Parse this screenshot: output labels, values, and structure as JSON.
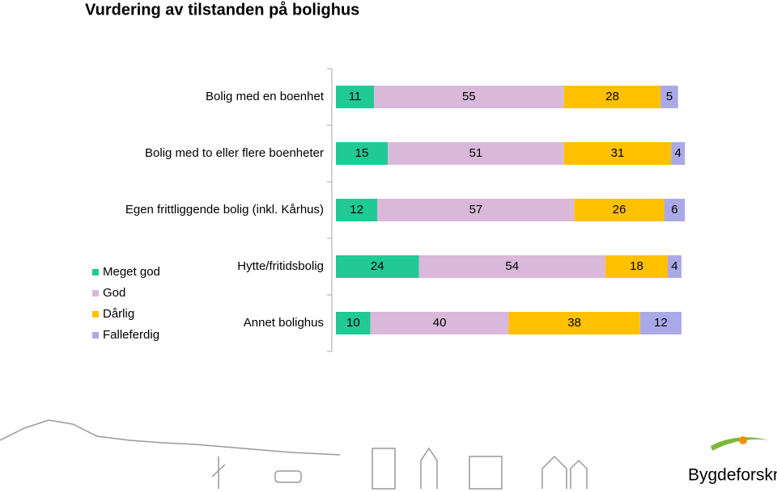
{
  "chart_data": {
    "type": "stacked-bar-horizontal",
    "title": "Vurdering av tilstanden på bolighus",
    "categories": [
      "Bolig med en boenhet",
      "Bolig med to eller flere boenheter",
      "Egen frittliggende bolig (inkl. Kårhus)",
      "Hytte/fritidsbolig",
      "Annet bolighus"
    ],
    "series": [
      {
        "name": "Meget god",
        "color": "#21c995",
        "values": [
          11,
          15,
          12,
          24,
          10
        ]
      },
      {
        "name": "God",
        "color": "#d9b8d9",
        "values": [
          55,
          51,
          57,
          54,
          40
        ]
      },
      {
        "name": "Dårlig",
        "color": "#ffc000",
        "values": [
          28,
          31,
          26,
          18,
          38
        ]
      },
      {
        "name": "Falleferdig",
        "color": "#a9a9e8",
        "values": [
          5,
          4,
          6,
          4,
          12
        ]
      }
    ],
    "xlim": [
      0,
      100
    ],
    "legend": "left",
    "logo_text": "Bygdeforskning"
  }
}
